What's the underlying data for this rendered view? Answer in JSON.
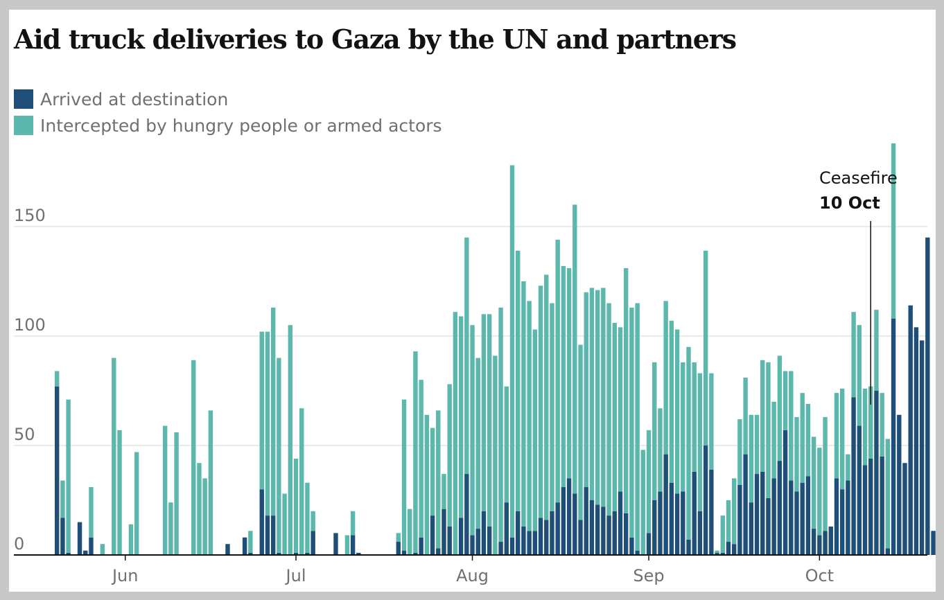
{
  "chart_data": {
    "type": "bar",
    "stacked": true,
    "title": "Aid truck deliveries to Gaza by the UN and partners",
    "xlabel": "",
    "ylabel": "",
    "ylim": [
      0,
      185
    ],
    "yticks": [
      0,
      50,
      100,
      150
    ],
    "grid": true,
    "legend_position": "top-left",
    "colors": {
      "arrived": "#1f4e79",
      "intercepted": "#5cb8ac",
      "grid": "#d4d4d4",
      "axis": "#121212"
    },
    "start_date": "2025-05-20",
    "x_ticks": [
      {
        "label": "Jun",
        "day_index": 12
      },
      {
        "label": "Jul",
        "day_index": 42
      },
      {
        "label": "Aug",
        "day_index": 73
      },
      {
        "label": "Sep",
        "day_index": 104
      },
      {
        "label": "Oct",
        "day_index": 134
      }
    ],
    "annotation": {
      "line1": "Ceasefire",
      "line2": "10 Oct",
      "day_index": 143,
      "bar_top": 68
    },
    "series": [
      {
        "name": "Arrived at destination",
        "key": "arrived",
        "values": [
          77,
          17,
          1,
          0,
          15,
          2,
          8,
          0,
          0,
          0,
          0,
          0,
          0,
          0,
          0,
          0,
          0,
          0,
          0,
          0,
          0,
          0,
          0,
          0,
          0,
          0,
          0,
          0,
          0,
          0,
          5,
          0,
          0,
          8,
          1,
          0,
          30,
          18,
          18,
          1,
          0,
          0,
          1,
          0,
          1,
          11,
          0,
          0,
          0,
          10,
          0,
          0,
          9,
          1,
          0,
          0,
          0,
          0,
          0,
          0,
          6,
          2,
          0,
          1,
          8,
          0,
          18,
          3,
          21,
          13,
          0,
          17,
          37,
          9,
          12,
          20,
          13,
          0,
          6,
          24,
          8,
          20,
          13,
          11,
          11,
          17,
          16,
          20,
          24,
          31,
          35,
          28,
          16,
          31,
          25,
          23,
          22,
          18,
          20,
          29,
          19,
          8,
          2,
          0,
          10,
          25,
          29,
          46,
          33,
          28,
          29,
          7,
          38,
          20,
          50,
          39,
          1,
          1,
          6,
          5,
          32,
          46,
          24,
          37,
          38,
          26,
          35,
          43,
          57,
          34,
          29,
          33,
          36,
          12,
          9,
          11,
          13,
          35,
          30,
          34,
          72,
          59,
          41,
          44,
          75,
          45,
          3,
          108,
          64,
          42,
          114,
          104,
          98,
          145,
          11
        ]
      },
      {
        "name": "Intercepted by hungry people or armed actors",
        "key": "intercepted",
        "values": [
          7,
          17,
          70,
          0,
          0,
          0,
          23,
          0,
          5,
          0,
          90,
          57,
          0,
          14,
          47,
          0,
          0,
          0,
          0,
          59,
          24,
          56,
          0,
          0,
          89,
          42,
          35,
          66,
          0,
          0,
          0,
          0,
          0,
          0,
          10,
          0,
          72,
          84,
          95,
          89,
          28,
          105,
          43,
          67,
          32,
          9,
          0,
          0,
          0,
          0,
          0,
          9,
          11,
          0,
          0,
          0,
          0,
          0,
          0,
          0,
          4,
          69,
          21,
          92,
          72,
          64,
          40,
          63,
          16,
          65,
          111,
          92,
          108,
          96,
          78,
          90,
          97,
          91,
          107,
          53,
          170,
          119,
          112,
          105,
          92,
          106,
          112,
          95,
          120,
          101,
          96,
          132,
          80,
          89,
          97,
          98,
          100,
          97,
          86,
          75,
          112,
          105,
          113,
          48,
          47,
          63,
          38,
          70,
          74,
          75,
          59,
          88,
          50,
          63,
          89,
          44,
          1,
          17,
          19,
          30,
          30,
          35,
          40,
          27,
          51,
          62,
          35,
          48,
          27,
          50,
          34,
          41,
          33,
          42,
          40,
          52,
          0,
          39,
          46,
          12,
          39,
          46,
          35,
          33,
          37,
          29,
          50,
          80,
          0,
          0,
          0,
          0,
          0,
          0,
          0
        ]
      }
    ]
  }
}
